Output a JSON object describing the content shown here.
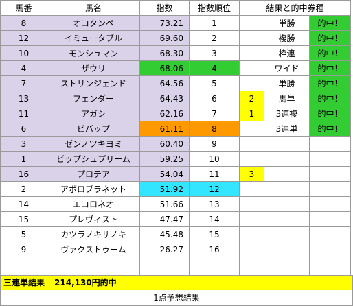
{
  "header": {
    "col_umaban": "馬番",
    "col_name": "馬名",
    "col_index": "指数",
    "col_rank": "指数順位",
    "col_result": "結果と的中券種"
  },
  "rows": [
    {
      "umaban": "8",
      "name": "オコタンペ",
      "index": "73.21",
      "rank": "1",
      "pos": "",
      "ticket": "単勝",
      "hit": "的中！"
    },
    {
      "umaban": "12",
      "name": "イミュータブル",
      "index": "69.60",
      "rank": "2",
      "pos": "",
      "ticket": "複勝",
      "hit": "的中！"
    },
    {
      "umaban": "10",
      "name": "モンシュマン",
      "index": "68.30",
      "rank": "3",
      "pos": "",
      "ticket": "枠連",
      "hit": "的中！"
    },
    {
      "umaban": "4",
      "name": "ザウリ",
      "index": "68.06",
      "rank": "4",
      "pos": "",
      "ticket": "ワイド",
      "hit": "的中！"
    },
    {
      "umaban": "7",
      "name": "ストリンジェンド",
      "index": "64.56",
      "rank": "5",
      "pos": "",
      "ticket": "単勝",
      "hit": "的中！"
    },
    {
      "umaban": "13",
      "name": "フェンダー",
      "index": "64.43",
      "rank": "6",
      "pos": "2",
      "ticket": "馬単",
      "hit": "的中！"
    },
    {
      "umaban": "11",
      "name": "アガシ",
      "index": "62.16",
      "rank": "7",
      "pos": "1",
      "ticket": "3連複",
      "hit": "的中！"
    },
    {
      "umaban": "6",
      "name": "ビバップ",
      "index": "61.11",
      "rank": "8",
      "pos": "",
      "ticket": "3連単",
      "hit": "的中！"
    },
    {
      "umaban": "3",
      "name": "ゼンノツキヨミ",
      "index": "60.40",
      "rank": "9",
      "pos": "",
      "ticket": "",
      "hit": ""
    },
    {
      "umaban": "1",
      "name": "ビップシュプリーム",
      "index": "59.25",
      "rank": "10",
      "pos": "",
      "ticket": "",
      "hit": ""
    },
    {
      "umaban": "16",
      "name": "プロテア",
      "index": "54.04",
      "rank": "11",
      "pos": "3",
      "ticket": "",
      "hit": ""
    },
    {
      "umaban": "2",
      "name": "アポロプラネット",
      "index": "51.92",
      "rank": "12",
      "pos": "",
      "ticket": "",
      "hit": ""
    },
    {
      "umaban": "14",
      "name": "エコロネオ",
      "index": "51.66",
      "rank": "13",
      "pos": "",
      "ticket": "",
      "hit": ""
    },
    {
      "umaban": "15",
      "name": "プレヴィスト",
      "index": "47.47",
      "rank": "14",
      "pos": "",
      "ticket": "",
      "hit": ""
    },
    {
      "umaban": "5",
      "name": "カツラノキサノキ",
      "index": "45.48",
      "rank": "15",
      "pos": "",
      "ticket": "",
      "hit": ""
    },
    {
      "umaban": "9",
      "name": "ヴァクストゥーム",
      "index": "26.27",
      "rank": "16",
      "pos": "",
      "ticket": "",
      "hit": ""
    }
  ],
  "footer": {
    "banner_label": "三連単結果",
    "banner_amount": "214,130円的中",
    "caption": "1点予想結果"
  },
  "colors": {
    "lavender": "#d9d2e9",
    "green": "#33cc33",
    "orange": "#ff9900",
    "cyan": "#33e5ff",
    "yellow": "#ffff00"
  }
}
